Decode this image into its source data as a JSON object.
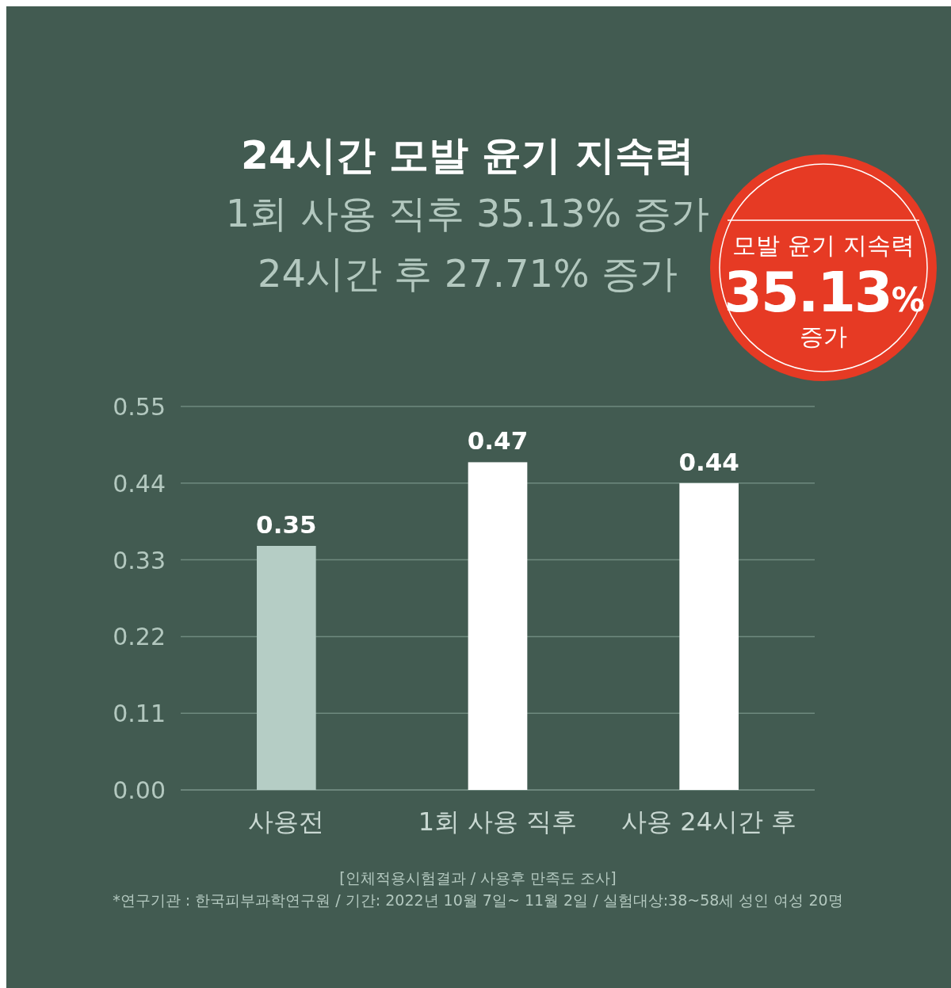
{
  "chart_data": {
    "type": "bar",
    "title": "24시간 모발 윤기 지속력",
    "subtitle": "1회 사용 직후 35.13% 증가\n24시간 후 27.71% 증가",
    "categories": [
      "사용전",
      "1회 사용 직후",
      "사용 24시간 후"
    ],
    "values": [
      0.35,
      0.47,
      0.44
    ],
    "colors": [
      "#b5cdc5",
      "#ffffff",
      "#ffffff"
    ],
    "ylim": [
      0,
      0.55
    ],
    "yticks": [
      {
        "value": 0,
        "label": "0.00"
      },
      0.11,
      0.22,
      0.33,
      0.44,
      0.55
    ],
    "grid": "y",
    "data_labels": true,
    "annotations": [
      "모발 윤기 지속력",
      "35.13%",
      "증가",
      "[인체적용시험결과 / 사용후 만족도 조사]",
      "*연구기관 : 한국피부과학연구원 / 기간: 2022년 10월 7일~ 11월 2일 / 실험대상:38~58세 성인 여성 20명"
    ]
  }
}
